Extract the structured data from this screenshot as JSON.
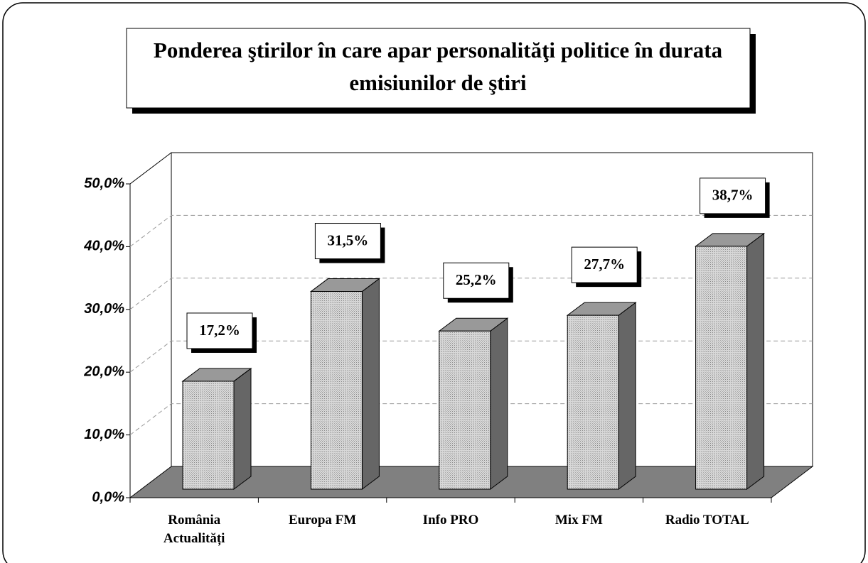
{
  "chart_data": {
    "type": "bar3d",
    "title": "Ponderea ştirilor în care apar personalităţi politice în durata emisiunilor de ştiri",
    "categories": [
      "România Actualități",
      "Europa FM",
      "Info PRO",
      "Mix FM",
      "Radio TOTAL"
    ],
    "values": [
      17.2,
      31.5,
      25.2,
      27.7,
      38.7
    ],
    "value_labels": [
      "17,2%",
      "31,5%",
      "25,2%",
      "27,7%",
      "38,7%"
    ],
    "color": "#c8c8c8",
    "ylim": [
      0,
      50
    ],
    "yticks": [
      {
        "value": 0,
        "label": "0,0%"
      },
      {
        "value": 10,
        "label": "10,0%"
      },
      {
        "value": 20,
        "label": "20,0%"
      },
      {
        "value": 30,
        "label": "30,0%"
      },
      {
        "value": 40,
        "label": "40,0%"
      },
      {
        "value": 50,
        "label": "50,0%"
      }
    ],
    "grid": true
  }
}
